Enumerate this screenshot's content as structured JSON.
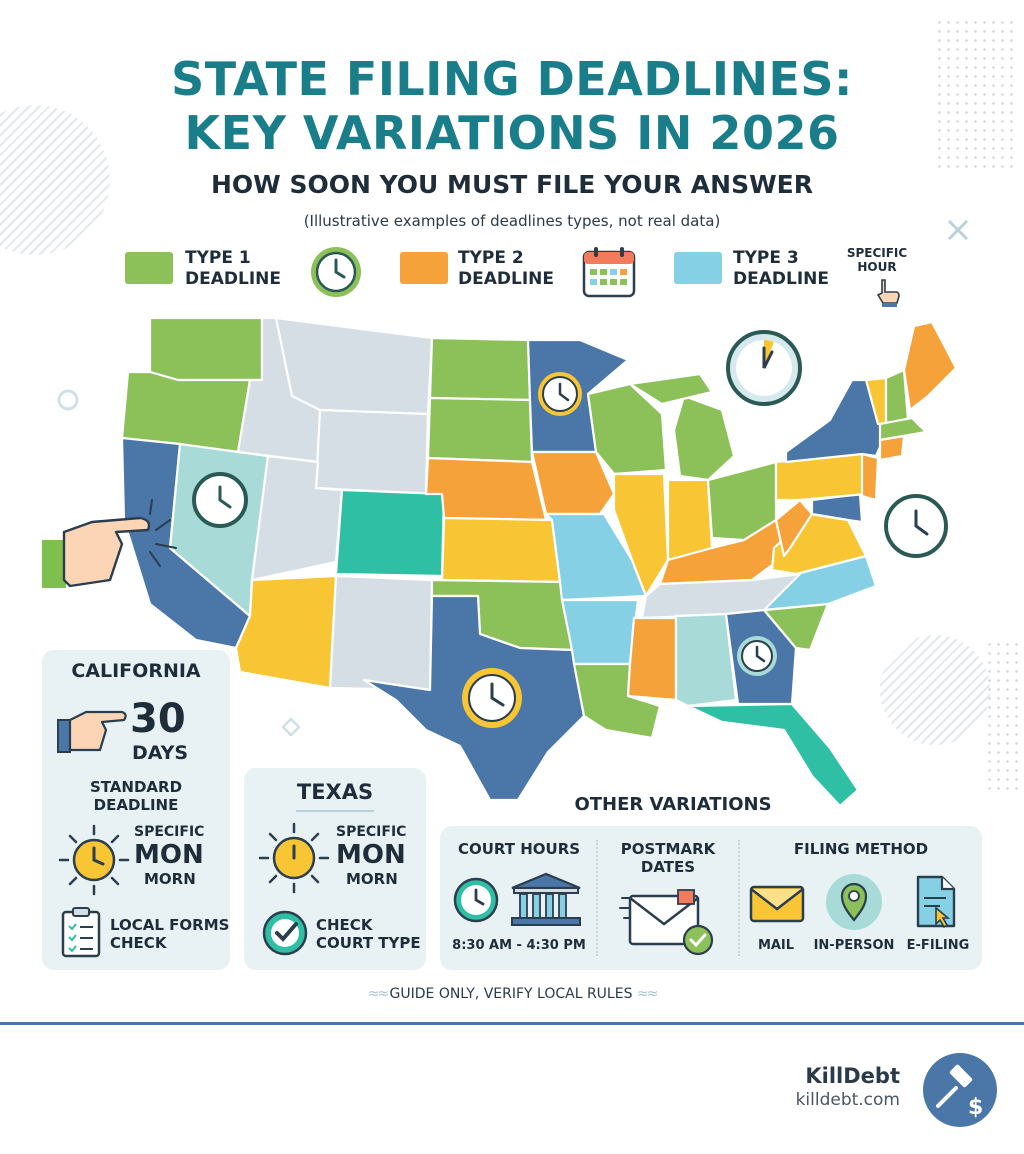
{
  "header": {
    "title_line1": "STATE FILING DEADLINES:",
    "title_line2": "KEY VARIATIONS IN 2026",
    "subtitle": "HOW SOON YOU MUST FILE YOUR ANSWER",
    "note": "(Illustrative examples of deadlines types, not real data)"
  },
  "legend": {
    "type1": "TYPE 1",
    "type1b": "DEADLINE",
    "type2": "TYPE 2",
    "type2b": "DEADLINE",
    "type3": "TYPE 3",
    "type3b": "DEADLINE",
    "specific": "SPECIFIC",
    "hour": "HOUR",
    "colors": {
      "type1": "#8cc15a",
      "type2": "#f6a23a",
      "type3": "#86d0e6"
    }
  },
  "map_colors": {
    "green": "#8cc15a",
    "orange": "#f6a23a",
    "yellow": "#f8c534",
    "blue": "#4a76a8",
    "lightblue": "#86d0e6",
    "grey": "#d5dee5",
    "teal": "#2ebfa5",
    "lightteal": "#a8dbd8"
  },
  "california": {
    "name": "CALIFORNIA",
    "number": "30",
    "unit": "DAYS",
    "line1": "STANDARD",
    "line2": "DEADLINE",
    "specific": "SPECIFIC",
    "day": "MON",
    "time": "MORN",
    "forms1": "LOCAL FORMS",
    "forms2": "CHECK"
  },
  "texas": {
    "name": "TEXAS",
    "specific": "SPECIFIC",
    "day": "MON",
    "time": "MORN",
    "check1": "CHECK",
    "check2": "COURT TYPE"
  },
  "other": {
    "heading": "OTHER VARIATIONS",
    "court_hours": "COURT HOURS",
    "hours_value": "8:30 AM - 4:30 PM",
    "postmark1": "POSTMARK",
    "postmark2": "DATES",
    "filing_method": "FILING METHOD",
    "mail": "MAIL",
    "in_person": "IN-PERSON",
    "efiling": "E-FILING"
  },
  "footer": {
    "guide": "GUIDE ONLY, VERIFY LOCAL RULES",
    "brand": "KillDebt",
    "site": "killdebt.com"
  }
}
